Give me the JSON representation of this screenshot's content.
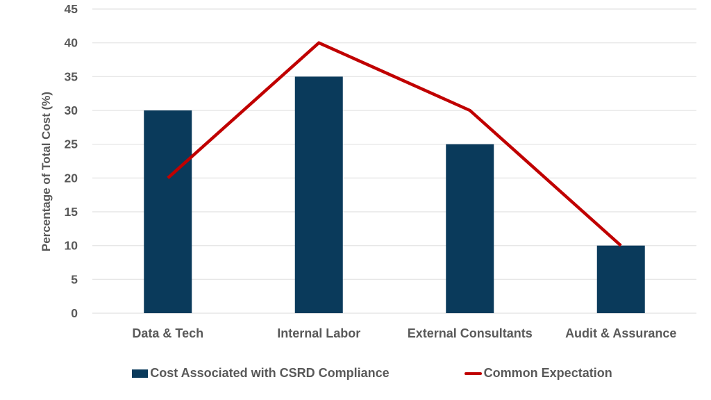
{
  "chart_data": {
    "type": "bar",
    "subtype": "bar-with-line-overlay",
    "title": "",
    "categories": [
      "Data & Tech",
      "Internal Labor",
      "External Consultants",
      "Audit & Assurance"
    ],
    "series": [
      {
        "name": "Cost Associated with CSRD Compliance",
        "type": "bar",
        "color": "#0a3a5b",
        "values": [
          30,
          35,
          25,
          10
        ]
      },
      {
        "name": "Common Expectation",
        "type": "line",
        "color": "#c00000",
        "values": [
          20,
          40,
          30,
          10
        ]
      }
    ],
    "xlabel": "",
    "ylabel": "Percentage of Total Cost (%)",
    "ylim": [
      0,
      45
    ],
    "y_ticks": [
      0,
      5,
      10,
      15,
      20,
      25,
      30,
      35,
      40,
      45
    ],
    "grid": true,
    "legend_position": "bottom",
    "colors": {
      "grid": "#e7e7e7",
      "text": "#595959",
      "background": "#ffffff"
    }
  }
}
